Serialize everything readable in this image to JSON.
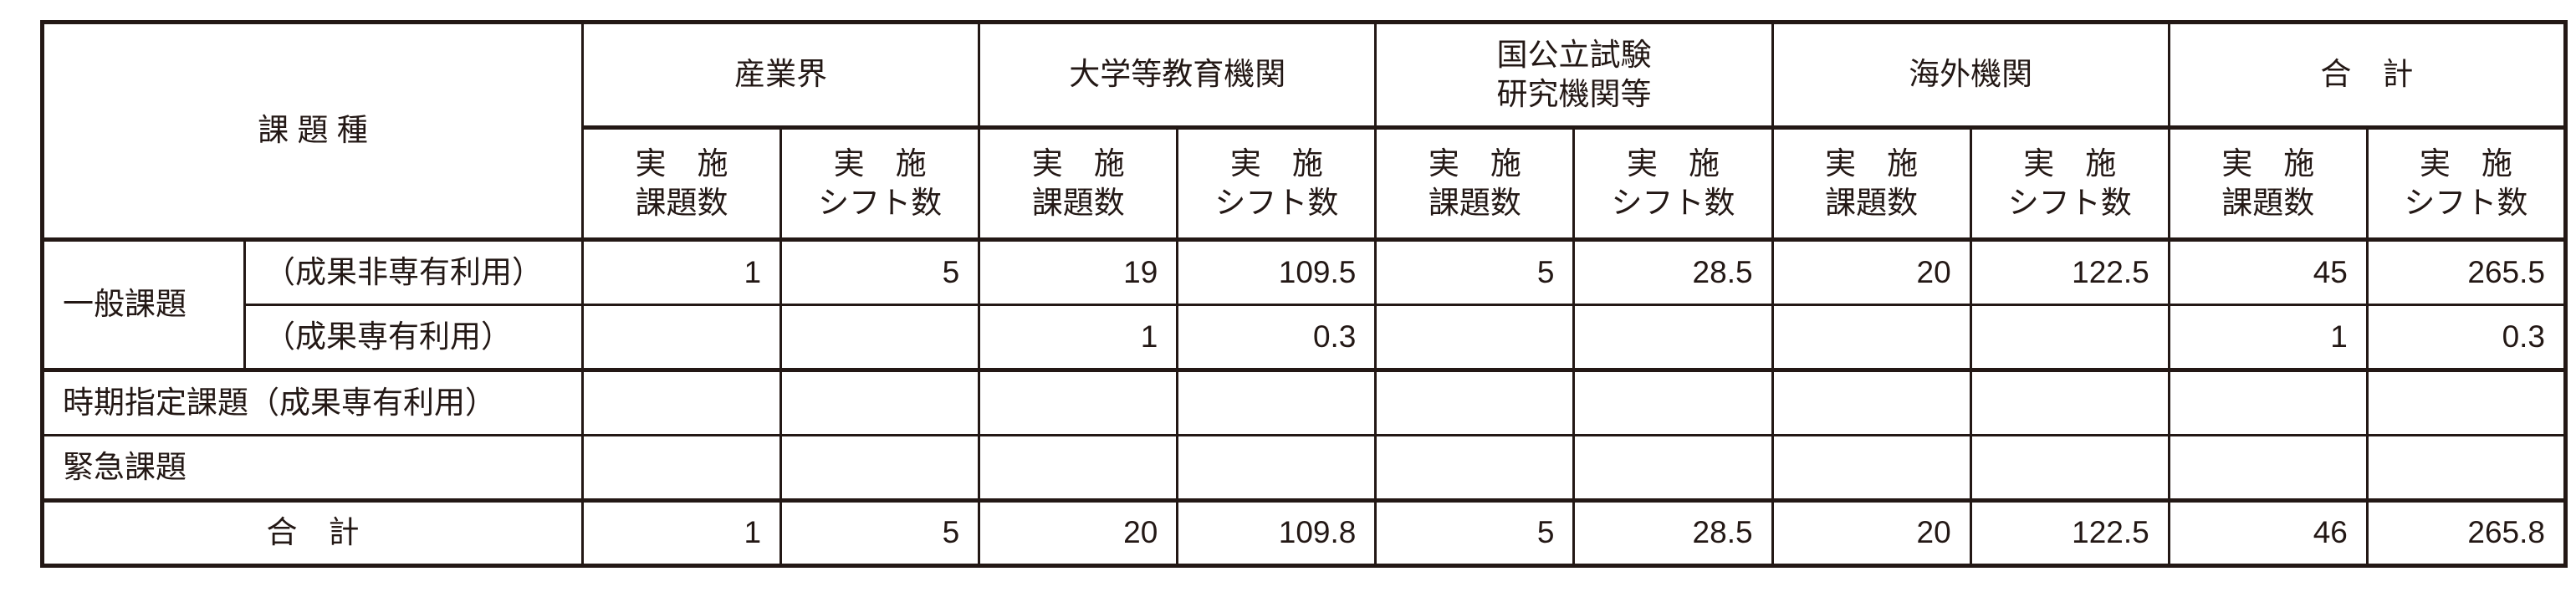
{
  "header": {
    "category_label": "課 題 種",
    "groups": [
      "産業界",
      "大学等教育機関",
      "国公立試験\n研究機関等",
      "海外機関",
      "合　計"
    ],
    "sub_columns": [
      {
        "line1": "実　施",
        "line2": "課題数"
      },
      {
        "line1": "実　施",
        "line2": "シフト数"
      }
    ]
  },
  "rows": [
    {
      "group": "一般課題",
      "label": "（成果非専有利用）",
      "values": [
        "1",
        "5",
        "19",
        "109.5",
        "5",
        "28.5",
        "20",
        "122.5",
        "45",
        "265.5"
      ]
    },
    {
      "group": "一般課題",
      "label": "（成果専有利用）",
      "values": [
        "",
        "",
        "1",
        "0.3",
        "",
        "",
        "",
        "",
        "1",
        "0.3"
      ]
    },
    {
      "label": "時期指定課題（成果専有利用）",
      "values": [
        "",
        "",
        "",
        "",
        "",
        "",
        "",
        "",
        "",
        ""
      ]
    },
    {
      "label": "緊急課題",
      "values": [
        "",
        "",
        "",
        "",
        "",
        "",
        "",
        "",
        "",
        ""
      ]
    },
    {
      "label": "合　計",
      "values": [
        "1",
        "5",
        "20",
        "109.8",
        "5",
        "28.5",
        "20",
        "122.5",
        "46",
        "265.8"
      ]
    }
  ]
}
